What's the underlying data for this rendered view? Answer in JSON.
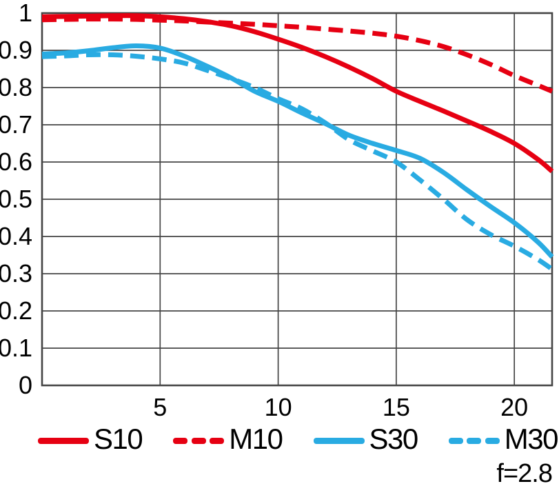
{
  "chart_data": {
    "type": "line",
    "title": "",
    "xlabel": "",
    "ylabel": "",
    "xlim": [
      0,
      21.6
    ],
    "ylim": [
      0,
      1
    ],
    "xticks": [
      5,
      10,
      15,
      20
    ],
    "xtick_labels": [
      "5",
      "10",
      "15",
      "20"
    ],
    "yticks": [
      0,
      0.1,
      0.2,
      0.3,
      0.4,
      0.5,
      0.6,
      0.7,
      0.8,
      0.9,
      1
    ],
    "ytick_labels": [
      "0",
      "0.1",
      "0.2",
      "0.3",
      "0.4",
      "0.5",
      "0.6",
      "0.7",
      "0.8",
      "0.9",
      "1"
    ],
    "grid": true,
    "legend_position": "bottom",
    "annotation": "f=2.8",
    "series": [
      {
        "name": "S10",
        "color": "#e60012",
        "style": "solid",
        "points": [
          [
            0,
            0.99
          ],
          [
            1,
            0.991
          ],
          [
            2,
            0.992
          ],
          [
            3,
            0.993
          ],
          [
            4,
            0.993
          ],
          [
            5,
            0.99
          ],
          [
            6,
            0.985
          ],
          [
            7,
            0.977
          ],
          [
            8,
            0.966
          ],
          [
            9,
            0.95
          ],
          [
            10,
            0.93
          ],
          [
            11,
            0.908
          ],
          [
            12,
            0.883
          ],
          [
            13,
            0.855
          ],
          [
            14,
            0.824
          ],
          [
            15,
            0.79
          ],
          [
            16,
            0.763
          ],
          [
            17,
            0.737
          ],
          [
            18,
            0.71
          ],
          [
            19,
            0.682
          ],
          [
            20,
            0.65
          ],
          [
            21,
            0.607
          ],
          [
            21.6,
            0.575
          ]
        ]
      },
      {
        "name": "M10",
        "color": "#e60012",
        "style": "dashed",
        "points": [
          [
            0,
            0.982
          ],
          [
            1,
            0.983
          ],
          [
            2,
            0.984
          ],
          [
            3,
            0.984
          ],
          [
            4,
            0.983
          ],
          [
            5,
            0.981
          ],
          [
            6,
            0.979
          ],
          [
            7,
            0.976
          ],
          [
            8,
            0.973
          ],
          [
            9,
            0.97
          ],
          [
            10,
            0.966
          ],
          [
            11,
            0.962
          ],
          [
            12,
            0.957
          ],
          [
            13,
            0.952
          ],
          [
            14,
            0.946
          ],
          [
            15,
            0.938
          ],
          [
            16,
            0.926
          ],
          [
            17,
            0.91
          ],
          [
            18,
            0.888
          ],
          [
            19,
            0.862
          ],
          [
            20,
            0.832
          ],
          [
            21,
            0.806
          ],
          [
            21.6,
            0.79
          ]
        ]
      },
      {
        "name": "S30",
        "color": "#29abe2",
        "style": "solid",
        "points": [
          [
            0,
            0.89
          ],
          [
            1,
            0.893
          ],
          [
            2,
            0.899
          ],
          [
            3,
            0.907
          ],
          [
            4,
            0.912
          ],
          [
            5,
            0.906
          ],
          [
            6,
            0.885
          ],
          [
            7,
            0.857
          ],
          [
            8,
            0.826
          ],
          [
            9,
            0.79
          ],
          [
            10,
            0.763
          ],
          [
            11,
            0.732
          ],
          [
            12,
            0.703
          ],
          [
            13,
            0.672
          ],
          [
            14,
            0.65
          ],
          [
            15,
            0.631
          ],
          [
            16,
            0.61
          ],
          [
            17,
            0.572
          ],
          [
            18,
            0.525
          ],
          [
            19,
            0.48
          ],
          [
            20,
            0.437
          ],
          [
            21,
            0.385
          ],
          [
            21.6,
            0.345
          ]
        ]
      },
      {
        "name": "M30",
        "color": "#29abe2",
        "style": "dashed",
        "points": [
          [
            0,
            0.883
          ],
          [
            1,
            0.885
          ],
          [
            2,
            0.888
          ],
          [
            3,
            0.888
          ],
          [
            4,
            0.884
          ],
          [
            5,
            0.877
          ],
          [
            6,
            0.866
          ],
          [
            7,
            0.846
          ],
          [
            8,
            0.824
          ],
          [
            9,
            0.8
          ],
          [
            10,
            0.77
          ],
          [
            11,
            0.743
          ],
          [
            12,
            0.705
          ],
          [
            13,
            0.66
          ],
          [
            14,
            0.63
          ],
          [
            15,
            0.6
          ],
          [
            16,
            0.552
          ],
          [
            17,
            0.5
          ],
          [
            18,
            0.445
          ],
          [
            19,
            0.405
          ],
          [
            20,
            0.374
          ],
          [
            21,
            0.338
          ],
          [
            21.6,
            0.312
          ]
        ]
      }
    ]
  },
  "legend": {
    "items": [
      {
        "label": "S10",
        "color": "#e60012",
        "style": "solid"
      },
      {
        "label": "M10",
        "color": "#e60012",
        "style": "dashed"
      },
      {
        "label": "S30",
        "color": "#29abe2",
        "style": "solid"
      },
      {
        "label": "M30",
        "color": "#29abe2",
        "style": "dashed"
      }
    ]
  },
  "footer": {
    "aperture_label": "f=2.8"
  },
  "colors": {
    "red": "#e60012",
    "blue": "#29abe2",
    "grid": "#454545",
    "text": "#000000",
    "background": "#ffffff"
  }
}
